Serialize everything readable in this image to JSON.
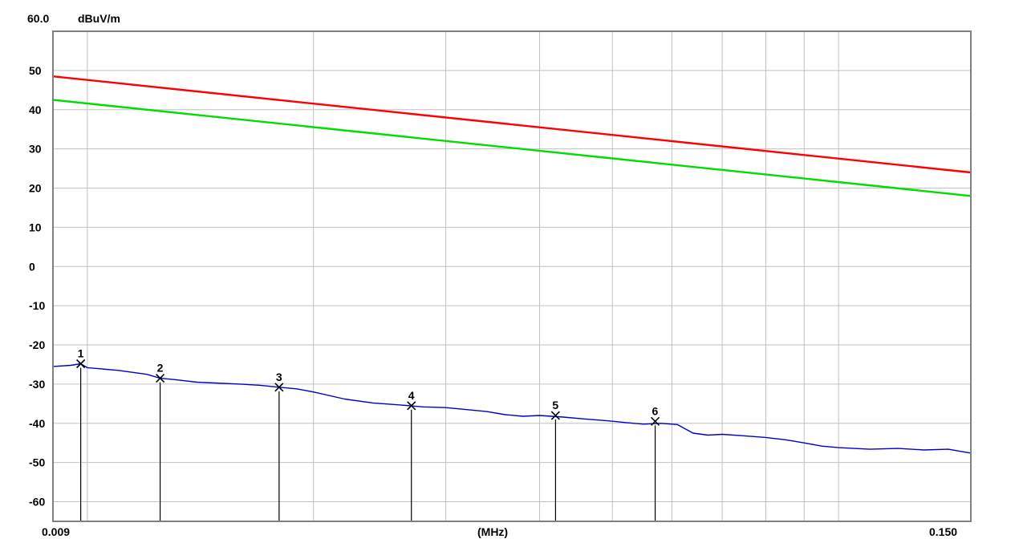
{
  "chart_data": {
    "type": "line",
    "title": "",
    "top_value_label": "60.0",
    "y_unit": "dBuV/m",
    "x_unit": "(MHz)",
    "x_start_label": "0.009",
    "x_end_label": "0.150",
    "x_scale": "log",
    "xlim": [
      0.009,
      0.15
    ],
    "ylim": [
      -65,
      60
    ],
    "y_ticks": [
      50,
      40,
      30,
      20,
      10,
      0,
      -10,
      -20,
      -30,
      -40,
      -50,
      -60
    ],
    "y_tick_labels": [
      "50",
      "40",
      "30",
      "20",
      "10",
      "0",
      "-10",
      "-20",
      "-30",
      "-40",
      "-50",
      "-60"
    ],
    "x_grid": [
      0.009,
      0.01,
      0.02,
      0.03,
      0.04,
      0.05,
      0.06,
      0.07,
      0.08,
      0.09,
      0.1,
      0.15
    ],
    "grid": true,
    "colors": {
      "limit_line": "#ff0000",
      "margin_line": "#00dd00",
      "trace": "#0000cc",
      "grid": "#c0c0c0",
      "markers": "#000000"
    },
    "series": [
      {
        "key": "limit",
        "x": [
          0.009,
          0.15
        ],
        "y": [
          48.5,
          24.0
        ]
      },
      {
        "key": "margin",
        "x": [
          0.009,
          0.15
        ],
        "y": [
          42.5,
          18.0
        ]
      },
      {
        "key": "trace",
        "x": [
          0.009,
          0.0095,
          0.0098,
          0.01,
          0.011,
          0.012,
          0.0125,
          0.013,
          0.014,
          0.016,
          0.017,
          0.018,
          0.019,
          0.02,
          0.022,
          0.024,
          0.026,
          0.028,
          0.03,
          0.032,
          0.034,
          0.036,
          0.038,
          0.04,
          0.043,
          0.046,
          0.049,
          0.052,
          0.055,
          0.058,
          0.061,
          0.064,
          0.067,
          0.07,
          0.075,
          0.08,
          0.085,
          0.09,
          0.095,
          0.1,
          0.11,
          0.12,
          0.13,
          0.14,
          0.15
        ],
        "y": [
          -25.5,
          -25.2,
          -24.8,
          -25.8,
          -26.5,
          -27.5,
          -28.5,
          -28.8,
          -29.5,
          -30.0,
          -30.3,
          -30.8,
          -31.2,
          -32.0,
          -33.8,
          -34.8,
          -35.3,
          -35.8,
          -36.0,
          -36.5,
          -37.0,
          -37.8,
          -38.2,
          -38.0,
          -38.4,
          -38.9,
          -39.3,
          -39.8,
          -40.2,
          -40.0,
          -40.3,
          -42.5,
          -43.0,
          -42.8,
          -43.2,
          -43.6,
          -44.2,
          -45.0,
          -45.8,
          -46.2,
          -46.6,
          -46.4,
          -46.8,
          -46.6,
          -47.6
        ]
      }
    ],
    "markers": [
      {
        "label": "1",
        "x": 0.0098,
        "y": -24.8
      },
      {
        "label": "2",
        "x": 0.0125,
        "y": -28.5
      },
      {
        "label": "3",
        "x": 0.018,
        "y": -30.8
      },
      {
        "label": "4",
        "x": 0.027,
        "y": -35.5
      },
      {
        "label": "5",
        "x": 0.042,
        "y": -38.0
      },
      {
        "label": "6",
        "x": 0.057,
        "y": -39.5
      }
    ]
  }
}
